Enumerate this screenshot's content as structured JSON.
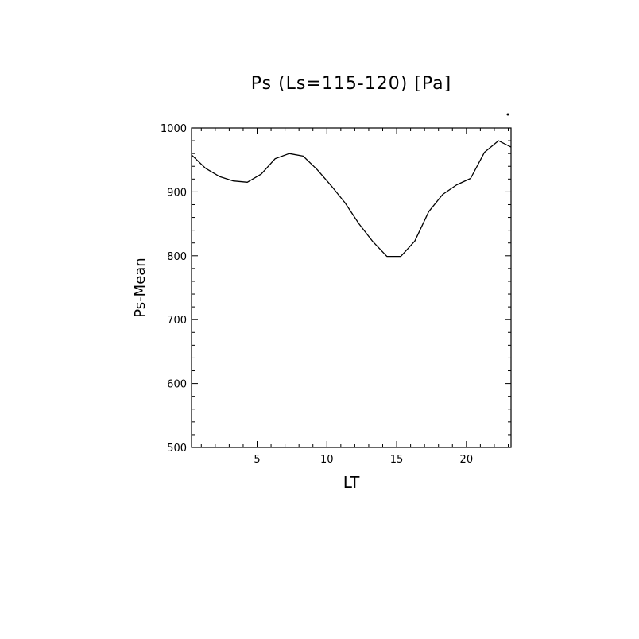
{
  "chart_data": {
    "type": "line",
    "title": "Ps (Ls=115-120) [Pa]",
    "xlabel": "LT",
    "ylabel": "Ps-Mean",
    "xlim": [
      0.3,
      23.2
    ],
    "ylim": [
      500,
      1000
    ],
    "x_ticks": [
      5,
      10,
      15,
      20
    ],
    "y_ticks": [
      500,
      600,
      700,
      800,
      900,
      1000
    ],
    "x_minor_step": 1,
    "y_minor_step": 20,
    "grid": false,
    "series": [
      {
        "x": [
          0.3,
          1.3,
          2.3,
          3.3,
          4.3,
          5.3,
          6.3,
          7.3,
          8.3,
          9.3,
          10.3,
          11.3,
          12.3,
          13.3,
          14.3,
          15.3,
          16.3,
          17.3,
          18.3,
          19.3,
          20.3,
          21.3,
          22.3,
          23.2
        ],
        "values": [
          958,
          937,
          924,
          917,
          915,
          928,
          952,
          960,
          956,
          935,
          910,
          883,
          850,
          822,
          799,
          799,
          823,
          869,
          896,
          911,
          921,
          962,
          980,
          970
        ],
        "color": "#000000"
      }
    ]
  }
}
